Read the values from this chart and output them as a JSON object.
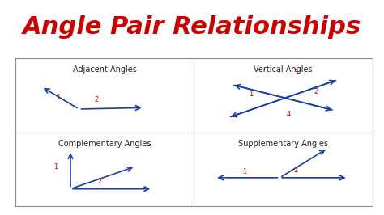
{
  "title": "Angle Pair Relationships",
  "title_color": "#cc0000",
  "title_fontsize": 22,
  "title_font": "Arial Black",
  "bg_color": "#ffffff",
  "grid_color": "#888888",
  "label_color": "#222222",
  "number_color": "#cc0000",
  "line_color": "#1a3caa",
  "panel_labels": [
    "Adjacent Angles",
    "Vertical Angles",
    "Complementary Angles",
    "Supplementary Angles"
  ]
}
